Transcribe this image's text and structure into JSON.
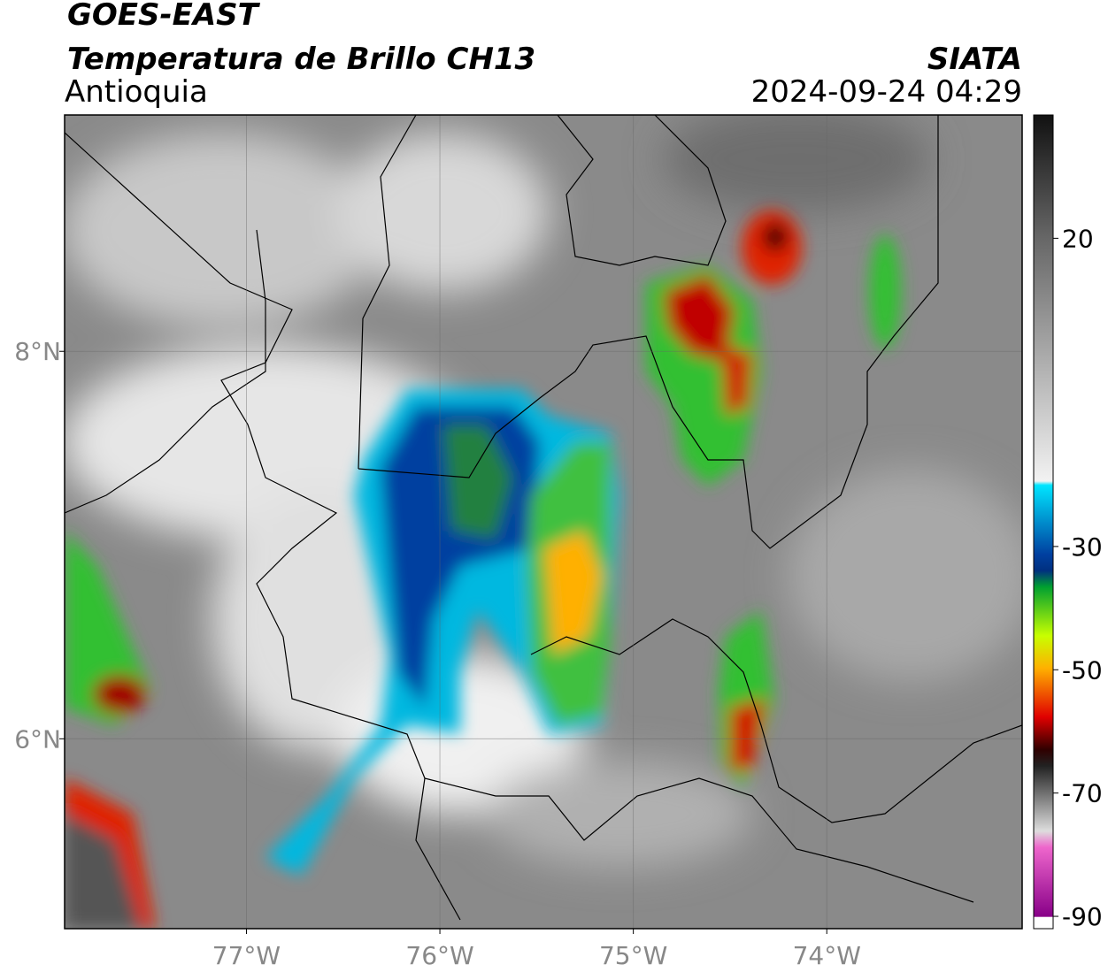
{
  "header": {
    "title": "GOES-EAST",
    "subtitle": "Temperatura de Brillo CH13",
    "region": "Antioquia",
    "source": "SIATA",
    "datetime": "2024-09-24 04:29"
  },
  "map": {
    "xlim": [
      -77.94,
      -72.99
    ],
    "ylim": [
      5.02,
      9.22
    ],
    "xticks": [
      {
        "value": -77,
        "label": "77°W"
      },
      {
        "value": -76,
        "label": "76°W"
      },
      {
        "value": -75,
        "label": "75°W"
      },
      {
        "value": -74,
        "label": "74°W"
      }
    ],
    "yticks": [
      {
        "value": 8,
        "label": "8°N"
      },
      {
        "value": 6,
        "label": "6°N"
      }
    ],
    "grid": true
  },
  "colorbar": {
    "lim": [
      -92,
      40
    ],
    "ticks": [
      20,
      -30,
      -50,
      -70,
      -90
    ]
  }
}
